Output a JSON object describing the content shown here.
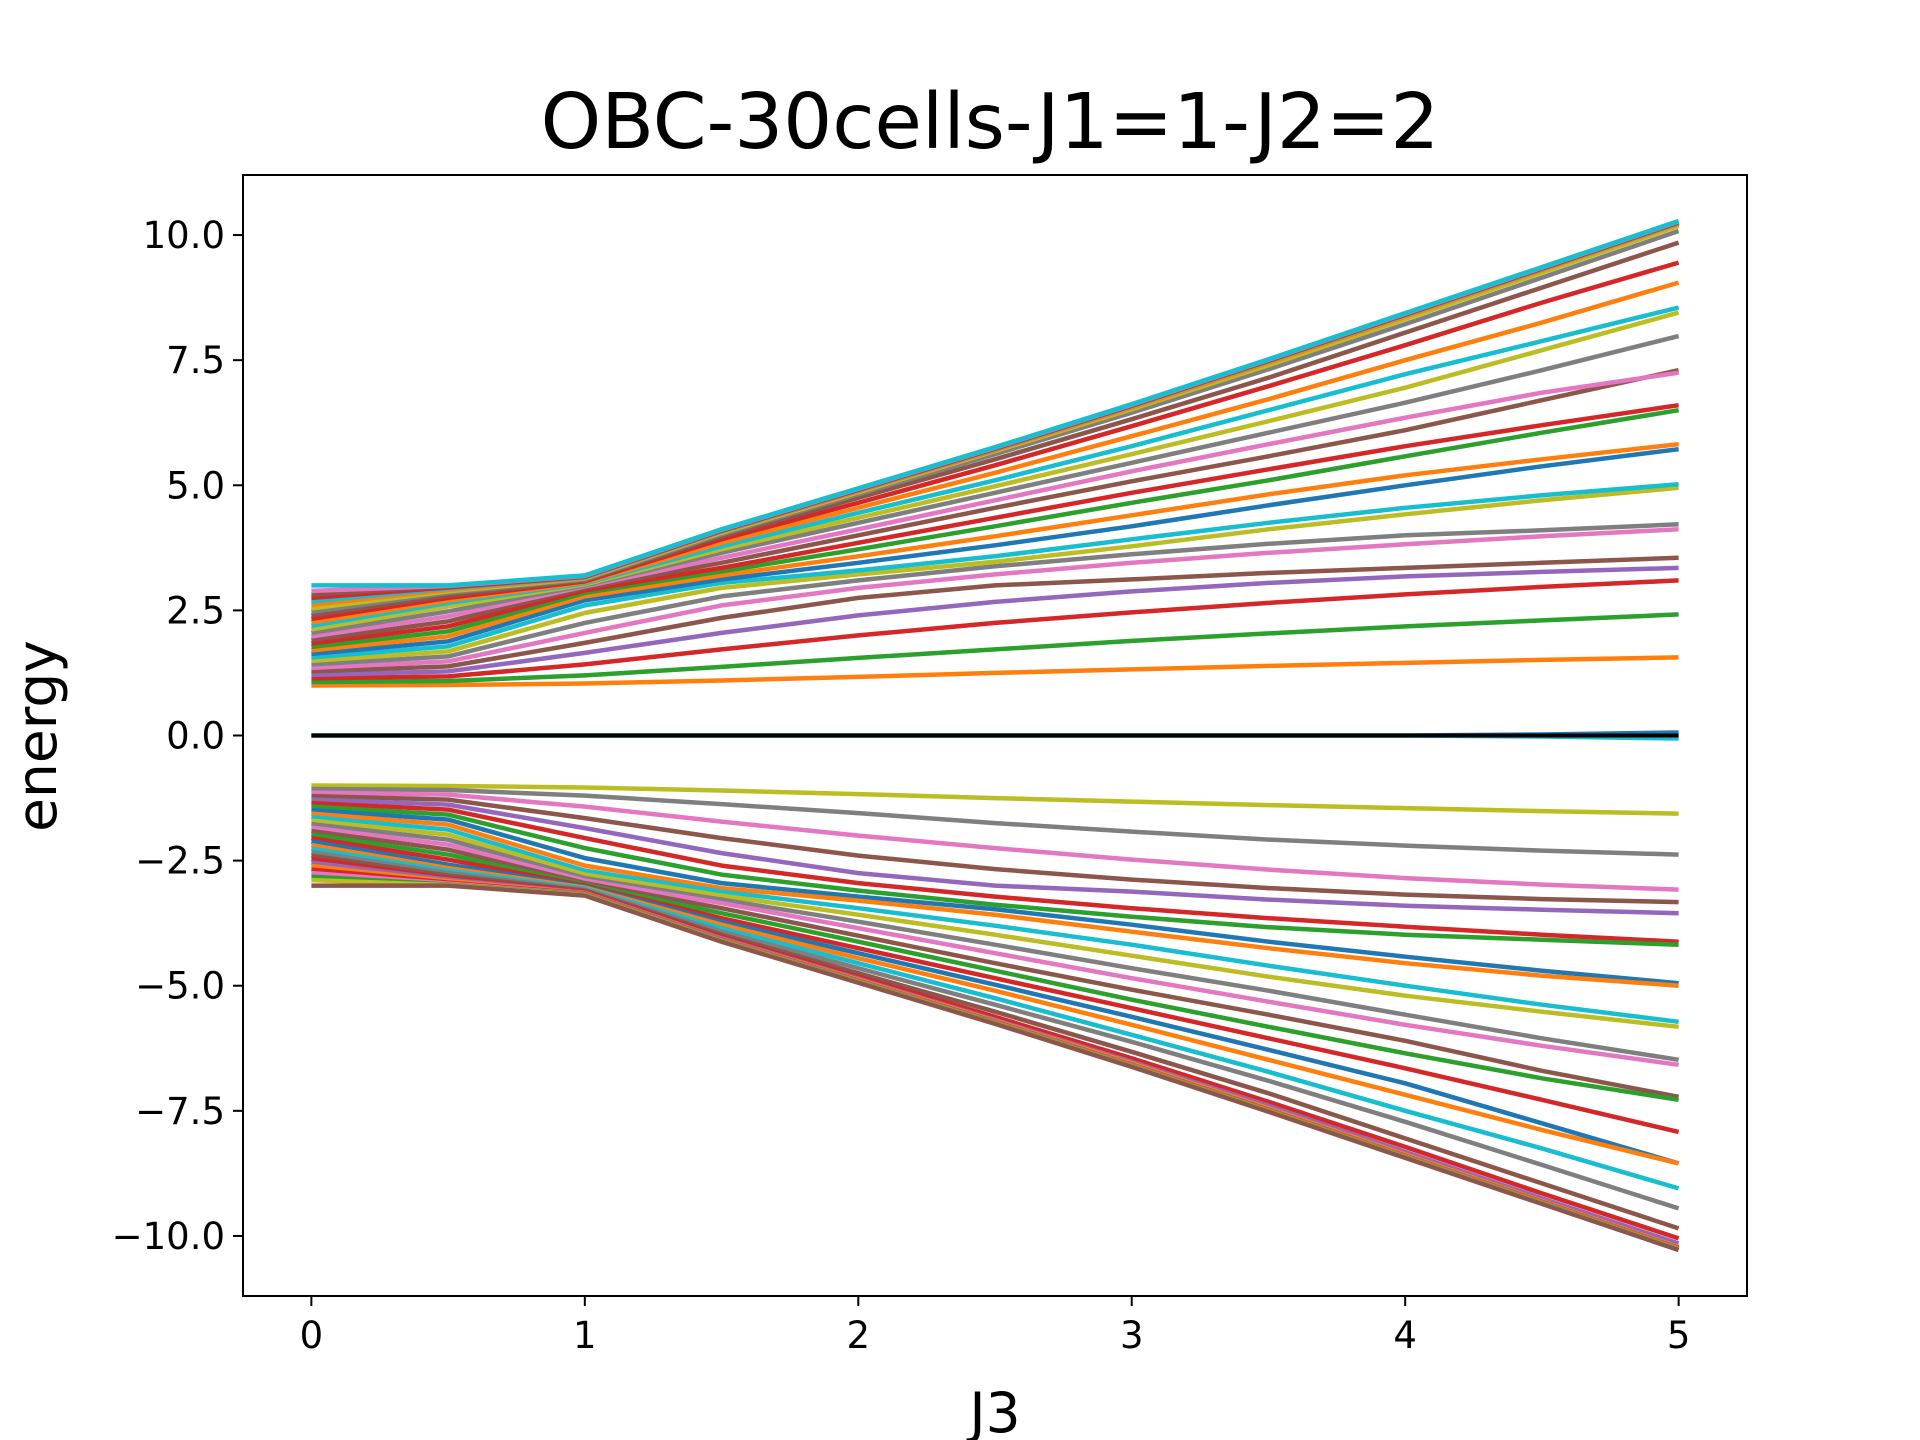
{
  "chart_data": {
    "type": "line",
    "title": "OBC-30cells-J1=1-J2=2",
    "xlabel": "J3",
    "ylabel": "energy",
    "xlim": [
      -0.25,
      5.25
    ],
    "ylim": [
      -11.2,
      11.2
    ],
    "xticks": [
      0,
      1,
      2,
      3,
      4,
      5
    ],
    "xtick_labels": [
      "0",
      "1",
      "2",
      "3",
      "4",
      "5"
    ],
    "yticks": [
      10.0,
      7.5,
      5.0,
      2.5,
      0.0,
      -2.5,
      -5.0,
      -7.5,
      -10.0
    ],
    "ytick_labels": [
      "10.0",
      "7.5",
      "5.0",
      "2.5",
      "0.0",
      "−2.5",
      "−5.0",
      "−7.5",
      "−10.0"
    ],
    "grid": false,
    "legend": "none",
    "x": [
      0,
      0.5,
      1,
      1.5,
      2,
      2.5,
      3,
      3.5,
      4,
      4.5,
      5
    ],
    "colors": [
      "#1f77b4",
      "#ff7f0e",
      "#2ca02c",
      "#d62728",
      "#9467bd",
      "#8c564b",
      "#e377c2",
      "#7f7f7f",
      "#bcbd22",
      "#17becf"
    ],
    "series": [
      {
        "color": "#ff7f0e",
        "values": [
          1.0,
          1.01,
          1.04,
          1.1,
          1.17,
          1.25,
          1.32,
          1.39,
          1.45,
          1.51,
          1.56
        ]
      },
      {
        "color": "#2ca02c",
        "values": [
          1.07,
          1.09,
          1.2,
          1.37,
          1.55,
          1.72,
          1.89,
          2.04,
          2.18,
          2.3,
          2.42
        ]
      },
      {
        "color": "#d62728",
        "values": [
          1.14,
          1.18,
          1.42,
          1.72,
          2.0,
          2.25,
          2.46,
          2.65,
          2.82,
          2.97,
          3.1
        ]
      },
      {
        "color": "#9467bd",
        "values": [
          1.21,
          1.28,
          1.65,
          2.05,
          2.4,
          2.67,
          2.88,
          3.05,
          3.18,
          3.27,
          3.35
        ]
      },
      {
        "color": "#8c564b",
        "values": [
          1.28,
          1.38,
          1.85,
          2.35,
          2.75,
          3.0,
          3.12,
          3.25,
          3.35,
          3.45,
          3.55
        ]
      },
      {
        "color": "#e377c2",
        "values": [
          1.35,
          1.48,
          2.05,
          2.6,
          2.95,
          3.22,
          3.45,
          3.65,
          3.82,
          3.98,
          4.12
        ]
      },
      {
        "color": "#7f7f7f",
        "values": [
          1.42,
          1.58,
          2.25,
          2.78,
          3.1,
          3.38,
          3.62,
          3.83,
          4.0,
          4.1,
          4.22
        ]
      },
      {
        "color": "#bcbd22",
        "values": [
          1.49,
          1.68,
          2.45,
          2.95,
          3.22,
          3.47,
          3.78,
          4.12,
          4.42,
          4.7,
          4.95
        ]
      },
      {
        "color": "#17becf",
        "values": [
          1.56,
          1.78,
          2.6,
          3.05,
          3.3,
          3.58,
          3.92,
          4.25,
          4.55,
          4.8,
          5.02
        ]
      },
      {
        "color": "#1f77b4",
        "values": [
          1.63,
          1.88,
          2.7,
          3.12,
          3.45,
          3.8,
          4.18,
          4.6,
          5.0,
          5.38,
          5.72
        ]
      },
      {
        "color": "#ff7f0e",
        "values": [
          1.7,
          1.98,
          2.78,
          3.2,
          3.58,
          3.98,
          4.4,
          4.82,
          5.2,
          5.52,
          5.82
        ]
      },
      {
        "color": "#2ca02c",
        "values": [
          1.77,
          2.08,
          2.85,
          3.28,
          3.72,
          4.18,
          4.65,
          5.1,
          5.58,
          6.05,
          6.5
        ]
      },
      {
        "color": "#d62728",
        "values": [
          1.84,
          2.18,
          2.9,
          3.35,
          3.85,
          4.35,
          4.85,
          5.32,
          5.78,
          6.2,
          6.6
        ]
      },
      {
        "color": "#8c564b",
        "values": [
          1.91,
          2.28,
          2.95,
          3.45,
          4.0,
          4.55,
          5.08,
          5.58,
          6.1,
          6.7,
          7.3
        ]
      },
      {
        "color": "#e377c2",
        "values": [
          1.98,
          2.38,
          2.98,
          3.55,
          4.12,
          4.7,
          5.28,
          5.82,
          6.35,
          6.85,
          7.25
        ]
      },
      {
        "color": "#7f7f7f",
        "values": [
          2.05,
          2.48,
          3.0,
          3.65,
          4.25,
          4.85,
          5.45,
          6.05,
          6.65,
          7.3,
          7.98
        ]
      },
      {
        "color": "#bcbd22",
        "values": [
          2.12,
          2.58,
          3.02,
          3.72,
          4.35,
          4.98,
          5.62,
          6.28,
          6.95,
          7.7,
          8.45
        ]
      },
      {
        "color": "#17becf",
        "values": [
          2.19,
          2.65,
          3.04,
          3.78,
          4.45,
          5.1,
          5.78,
          6.5,
          7.22,
          7.88,
          8.55
        ]
      },
      {
        "color": "#ff7f0e",
        "values": [
          2.26,
          2.7,
          3.06,
          3.85,
          4.55,
          5.25,
          5.98,
          6.72,
          7.5,
          8.25,
          9.05
        ]
      },
      {
        "color": "#d62728",
        "values": [
          2.33,
          2.75,
          3.08,
          3.92,
          4.65,
          5.4,
          6.18,
          6.98,
          7.8,
          8.65,
          9.45
        ]
      },
      {
        "color": "#8c564b",
        "values": [
          2.4,
          2.8,
          3.1,
          3.98,
          4.75,
          5.52,
          6.32,
          7.15,
          8.05,
          8.95,
          9.85
        ]
      },
      {
        "color": "#7f7f7f",
        "values": [
          2.47,
          2.85,
          3.12,
          4.02,
          4.82,
          5.62,
          6.45,
          7.32,
          8.22,
          9.15,
          10.08
        ]
      },
      {
        "color": "#bcbd22",
        "values": [
          2.54,
          2.88,
          3.14,
          4.05,
          4.86,
          5.68,
          6.52,
          7.4,
          8.32,
          9.25,
          10.18
        ]
      },
      {
        "color": "#ff7f0e",
        "values": [
          2.61,
          2.91,
          3.15,
          4.07,
          4.88,
          5.7,
          6.55,
          7.45,
          8.37,
          9.3,
          10.22
        ]
      },
      {
        "color": "#17becf",
        "values": [
          2.68,
          2.94,
          3.16,
          4.08,
          4.9,
          5.72,
          6.58,
          7.48,
          8.4,
          9.32,
          10.24
        ]
      },
      {
        "color": "#d62728",
        "values": [
          2.75,
          2.96,
          3.17,
          4.09,
          4.91,
          5.73,
          6.59,
          7.49,
          8.41,
          9.33,
          10.25
        ]
      },
      {
        "color": "#8c564b",
        "values": [
          2.82,
          2.98,
          3.18,
          4.1,
          4.92,
          5.74,
          6.6,
          7.5,
          8.42,
          9.34,
          10.26
        ]
      },
      {
        "color": "#e377c2",
        "values": [
          2.89,
          2.99,
          3.19,
          4.11,
          4.93,
          5.75,
          6.61,
          7.51,
          8.43,
          9.35,
          10.27
        ]
      },
      {
        "color": "#17becf",
        "values": [
          3.0,
          3.0,
          3.2,
          4.12,
          4.94,
          5.76,
          6.62,
          7.52,
          8.44,
          9.36,
          10.28
        ]
      },
      {
        "color": "#bcbd22",
        "values": [
          -1.0,
          -1.01,
          -1.04,
          -1.1,
          -1.17,
          -1.25,
          -1.32,
          -1.39,
          -1.45,
          -1.51,
          -1.56
        ]
      },
      {
        "color": "#7f7f7f",
        "values": [
          -1.07,
          -1.09,
          -1.2,
          -1.37,
          -1.55,
          -1.75,
          -1.92,
          -2.08,
          -2.2,
          -2.3,
          -2.38
        ]
      },
      {
        "color": "#e377c2",
        "values": [
          -1.14,
          -1.18,
          -1.42,
          -1.72,
          -2.0,
          -2.25,
          -2.48,
          -2.68,
          -2.85,
          -2.98,
          -3.08
        ]
      },
      {
        "color": "#8c564b",
        "values": [
          -1.21,
          -1.28,
          -1.65,
          -2.05,
          -2.4,
          -2.67,
          -2.88,
          -3.05,
          -3.18,
          -3.27,
          -3.33
        ]
      },
      {
        "color": "#9467bd",
        "values": [
          -1.28,
          -1.38,
          -1.85,
          -2.35,
          -2.75,
          -3.0,
          -3.12,
          -3.28,
          -3.4,
          -3.48,
          -3.55
        ]
      },
      {
        "color": "#d62728",
        "values": [
          -1.35,
          -1.48,
          -2.05,
          -2.6,
          -2.95,
          -3.22,
          -3.45,
          -3.65,
          -3.82,
          -3.98,
          -4.12
        ]
      },
      {
        "color": "#2ca02c",
        "values": [
          -1.42,
          -1.58,
          -2.25,
          -2.78,
          -3.1,
          -3.38,
          -3.62,
          -3.83,
          -3.98,
          -4.08,
          -4.18
        ]
      },
      {
        "color": "#1f77b4",
        "values": [
          -1.49,
          -1.68,
          -2.45,
          -2.95,
          -3.22,
          -3.47,
          -3.78,
          -4.12,
          -4.42,
          -4.7,
          -4.95
        ]
      },
      {
        "color": "#ff7f0e",
        "values": [
          -1.56,
          -1.78,
          -2.6,
          -3.05,
          -3.3,
          -3.58,
          -3.92,
          -4.25,
          -4.55,
          -4.8,
          -5.0
        ]
      },
      {
        "color": "#17becf",
        "values": [
          -1.63,
          -1.88,
          -2.7,
          -3.12,
          -3.45,
          -3.8,
          -4.18,
          -4.6,
          -5.0,
          -5.38,
          -5.72
        ]
      },
      {
        "color": "#bcbd22",
        "values": [
          -1.7,
          -1.98,
          -2.78,
          -3.2,
          -3.58,
          -3.98,
          -4.4,
          -4.82,
          -5.2,
          -5.52,
          -5.82
        ]
      },
      {
        "color": "#7f7f7f",
        "values": [
          -1.77,
          -2.08,
          -2.85,
          -3.28,
          -3.72,
          -4.18,
          -4.65,
          -5.1,
          -5.58,
          -6.05,
          -6.48
        ]
      },
      {
        "color": "#e377c2",
        "values": [
          -1.84,
          -2.18,
          -2.9,
          -3.35,
          -3.85,
          -4.35,
          -4.85,
          -5.32,
          -5.78,
          -6.2,
          -6.58
        ]
      },
      {
        "color": "#8c564b",
        "values": [
          -1.91,
          -2.28,
          -2.95,
          -3.45,
          -4.0,
          -4.55,
          -5.08,
          -5.58,
          -6.1,
          -6.7,
          -7.22
        ]
      },
      {
        "color": "#2ca02c",
        "values": [
          -1.98,
          -2.38,
          -2.98,
          -3.55,
          -4.12,
          -4.7,
          -5.28,
          -5.82,
          -6.35,
          -6.85,
          -7.28
        ]
      },
      {
        "color": "#d62728",
        "values": [
          -2.05,
          -2.48,
          -3.0,
          -3.65,
          -4.25,
          -4.85,
          -5.45,
          -6.05,
          -6.65,
          -7.28,
          -7.92
        ]
      },
      {
        "color": "#1f77b4",
        "values": [
          -2.12,
          -2.58,
          -3.02,
          -3.72,
          -4.35,
          -4.98,
          -5.62,
          -6.28,
          -6.95,
          -7.75,
          -8.55
        ]
      },
      {
        "color": "#ff7f0e",
        "values": [
          -2.19,
          -2.65,
          -3.04,
          -3.78,
          -4.45,
          -5.1,
          -5.78,
          -6.48,
          -7.18,
          -7.88,
          -8.55
        ]
      },
      {
        "color": "#17becf",
        "values": [
          -2.26,
          -2.7,
          -3.06,
          -3.85,
          -4.55,
          -5.25,
          -5.98,
          -6.72,
          -7.5,
          -8.25,
          -9.05
        ]
      },
      {
        "color": "#7f7f7f",
        "values": [
          -2.33,
          -2.75,
          -3.08,
          -3.92,
          -4.65,
          -5.38,
          -6.12,
          -6.9,
          -7.72,
          -8.58,
          -9.45
        ]
      },
      {
        "color": "#8c564b",
        "values": [
          -2.4,
          -2.8,
          -3.1,
          -3.98,
          -4.75,
          -5.52,
          -6.32,
          -7.15,
          -8.05,
          -8.95,
          -9.85
        ]
      },
      {
        "color": "#d62728",
        "values": [
          -2.47,
          -2.85,
          -3.12,
          -4.02,
          -4.82,
          -5.62,
          -6.45,
          -7.32,
          -8.22,
          -9.15,
          -10.05
        ]
      },
      {
        "color": "#9467bd",
        "values": [
          -2.54,
          -2.88,
          -3.14,
          -4.05,
          -4.86,
          -5.68,
          -6.52,
          -7.4,
          -8.32,
          -9.25,
          -10.15
        ]
      },
      {
        "color": "#ff7f0e",
        "values": [
          -2.61,
          -2.91,
          -3.15,
          -4.07,
          -4.88,
          -5.7,
          -6.55,
          -7.45,
          -8.37,
          -9.3,
          -10.22
        ]
      },
      {
        "color": "#d62728",
        "values": [
          -2.68,
          -2.94,
          -3.16,
          -4.08,
          -4.9,
          -5.72,
          -6.58,
          -7.48,
          -8.4,
          -9.32,
          -10.24
        ]
      },
      {
        "color": "#e377c2",
        "values": [
          -2.75,
          -2.96,
          -3.17,
          -4.09,
          -4.91,
          -5.73,
          -6.59,
          -7.49,
          -8.41,
          -9.33,
          -10.25
        ]
      },
      {
        "color": "#2ca02c",
        "values": [
          -2.82,
          -2.98,
          -3.18,
          -4.1,
          -4.92,
          -5.74,
          -6.6,
          -7.5,
          -8.42,
          -9.34,
          -10.26
        ]
      },
      {
        "color": "#bcbd22",
        "values": [
          -2.89,
          -2.99,
          -3.19,
          -4.11,
          -4.93,
          -5.75,
          -6.61,
          -7.51,
          -8.43,
          -9.35,
          -10.27
        ]
      },
      {
        "color": "#8c564b",
        "values": [
          -3.0,
          -3.0,
          -3.2,
          -4.12,
          -4.94,
          -5.76,
          -6.62,
          -7.52,
          -8.44,
          -9.36,
          -10.28
        ]
      },
      {
        "color": "#17becf",
        "values": [
          0.0,
          0.0,
          0.0,
          0.0,
          0.0,
          0.0,
          0.0,
          0.0,
          0.0,
          -0.02,
          -0.06
        ]
      },
      {
        "color": "#1f77b4",
        "values": [
          0.0,
          0.0,
          0.0,
          0.0,
          0.0,
          0.0,
          0.0,
          0.0,
          0.0,
          0.02,
          0.06
        ]
      },
      {
        "color": "#000000",
        "values": [
          0.0,
          0.0,
          0.0,
          0.0,
          0.0,
          0.0,
          0.0,
          0.0,
          0.0,
          0.0,
          0.0
        ]
      }
    ]
  }
}
